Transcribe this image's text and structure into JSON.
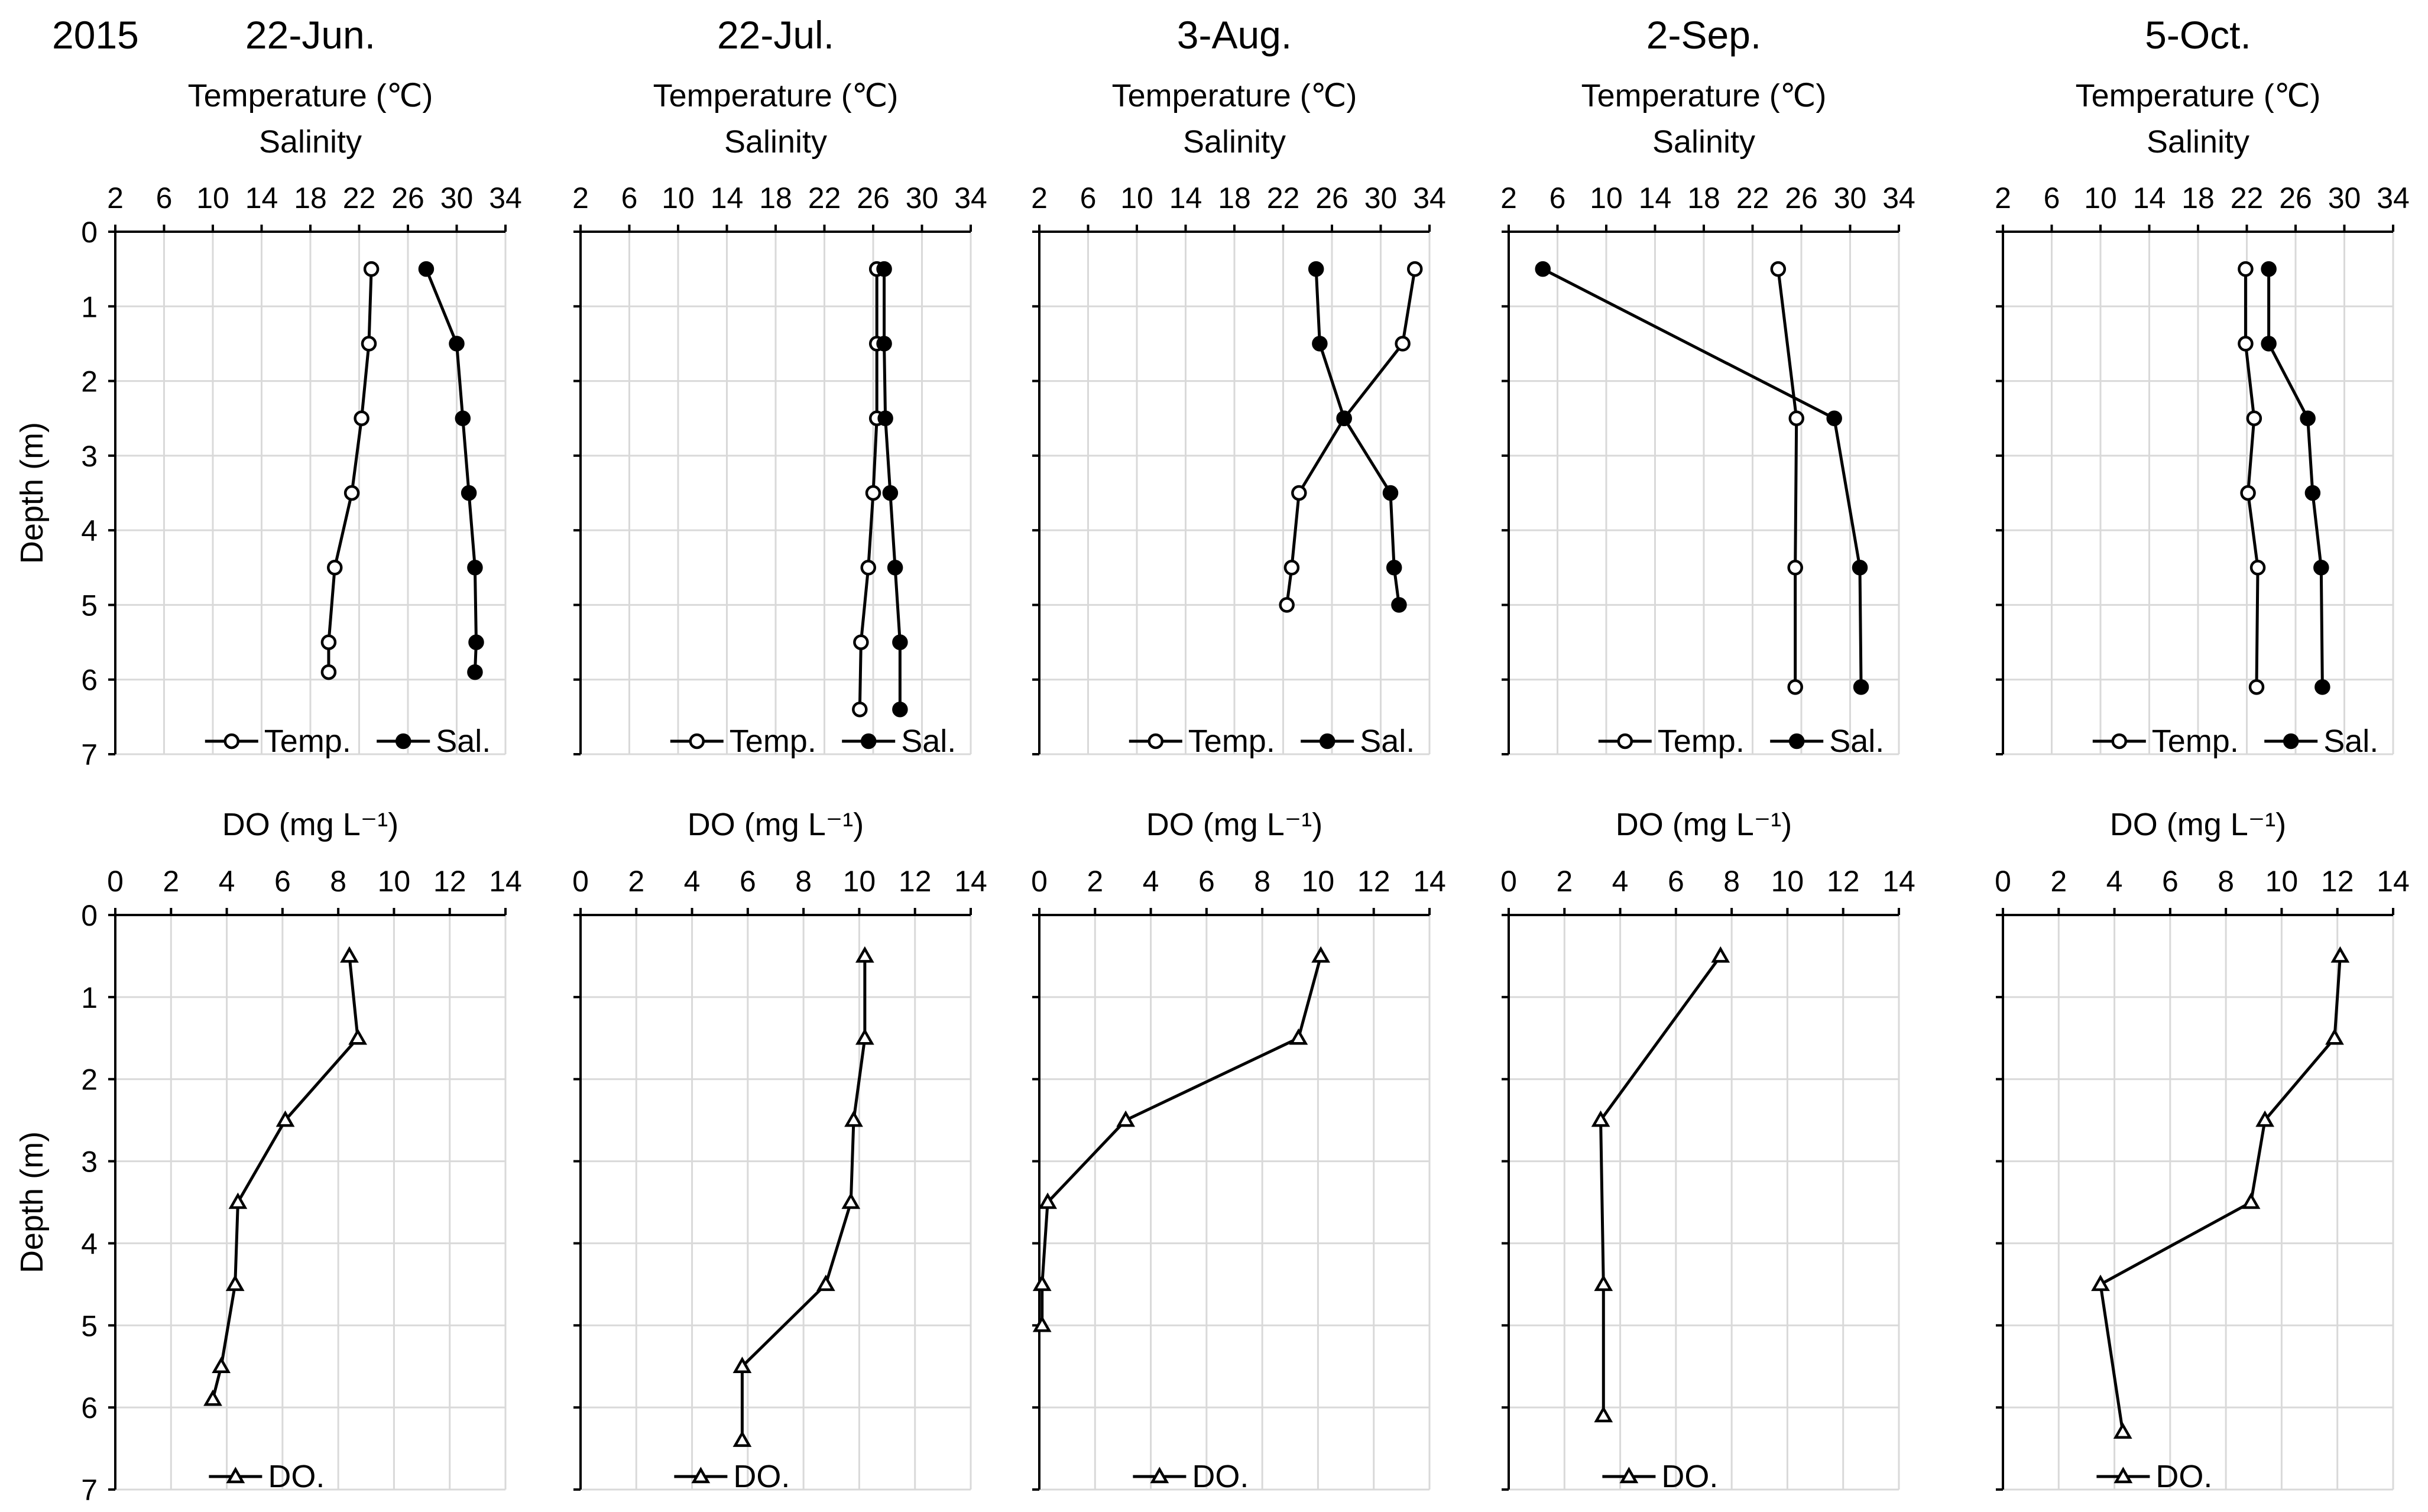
{
  "year": "2015",
  "chart_data": [
    {
      "type": "line",
      "row": "temperature-salinity",
      "title": "22-Jun.",
      "xlabel_top": "Temperature (℃)",
      "xlabel_bottom": "Salinity",
      "ylabel": "Depth (m)",
      "xlim": [
        2,
        34
      ],
      "xticks": [
        "2",
        "6",
        "10",
        "14",
        "18",
        "22",
        "26",
        "30",
        "34"
      ],
      "ylim": [
        0,
        7
      ],
      "yticks": [
        "0",
        "1",
        "2",
        "3",
        "4",
        "5",
        "6",
        "7"
      ],
      "series": [
        {
          "name": "Temp.",
          "marker": "open-circle",
          "points": [
            [
              23,
              0.5
            ],
            [
              22.8,
              1.5
            ],
            [
              22.2,
              2.5
            ],
            [
              21.4,
              3.5
            ],
            [
              20,
              4.5
            ],
            [
              19.5,
              5.5
            ],
            [
              19.5,
              5.9
            ]
          ]
        },
        {
          "name": "Sal.",
          "marker": "filled-circle",
          "points": [
            [
              27.5,
              0.5
            ],
            [
              30,
              1.5
            ],
            [
              30.5,
              2.5
            ],
            [
              31,
              3.5
            ],
            [
              31.5,
              4.5
            ],
            [
              31.6,
              5.5
            ],
            [
              31.5,
              5.9
            ]
          ]
        }
      ]
    },
    {
      "type": "line",
      "row": "temperature-salinity",
      "title": "22-Jul.",
      "xlabel_top": "Temperature (℃)",
      "xlabel_bottom": "Salinity",
      "ylabel": "",
      "xlim": [
        2,
        34
      ],
      "xticks": [
        "2",
        "6",
        "10",
        "14",
        "18",
        "22",
        "26",
        "30",
        "34"
      ],
      "ylim": [
        0,
        7
      ],
      "yticks": [
        "",
        "",
        "",
        "",
        "",
        "",
        "",
        ""
      ],
      "series": [
        {
          "name": "Temp.",
          "marker": "open-circle",
          "points": [
            [
              26.3,
              0.5
            ],
            [
              26.3,
              1.5
            ],
            [
              26.3,
              2.5
            ],
            [
              26,
              3.5
            ],
            [
              25.6,
              4.5
            ],
            [
              25,
              5.5
            ],
            [
              24.9,
              6.4
            ]
          ]
        },
        {
          "name": "Sal.",
          "marker": "filled-circle",
          "points": [
            [
              26.9,
              0.5
            ],
            [
              26.9,
              1.5
            ],
            [
              27,
              2.5
            ],
            [
              27.4,
              3.5
            ],
            [
              27.8,
              4.5
            ],
            [
              28.2,
              5.5
            ],
            [
              28.2,
              6.4
            ]
          ]
        }
      ]
    },
    {
      "type": "line",
      "row": "temperature-salinity",
      "title": "3-Aug.",
      "xlabel_top": "Temperature (℃)",
      "xlabel_bottom": "Salinity",
      "ylabel": "",
      "xlim": [
        2,
        34
      ],
      "xticks": [
        "2",
        "6",
        "10",
        "14",
        "18",
        "22",
        "26",
        "30",
        "34"
      ],
      "ylim": [
        0,
        7
      ],
      "yticks": [
        "",
        "",
        "",
        "",
        "",
        "",
        "",
        ""
      ],
      "series": [
        {
          "name": "Temp.",
          "marker": "open-circle",
          "points": [
            [
              32.8,
              0.5
            ],
            [
              31.8,
              1.5
            ],
            [
              27,
              2.5
            ],
            [
              23.3,
              3.5
            ],
            [
              22.7,
              4.5
            ],
            [
              22.3,
              5.0
            ]
          ]
        },
        {
          "name": "Sal.",
          "marker": "filled-circle",
          "points": [
            [
              24.7,
              0.5
            ],
            [
              25,
              1.5
            ],
            [
              27,
              2.5
            ],
            [
              30.8,
              3.5
            ],
            [
              31.1,
              4.5
            ],
            [
              31.5,
              5.0
            ]
          ]
        }
      ]
    },
    {
      "type": "line",
      "row": "temperature-salinity",
      "title": "2-Sep.",
      "xlabel_top": "Temperature (℃)",
      "xlabel_bottom": "Salinity",
      "ylabel": "",
      "xlim": [
        2,
        34
      ],
      "xticks": [
        "2",
        "6",
        "10",
        "14",
        "18",
        "22",
        "26",
        "30",
        "34"
      ],
      "ylim": [
        0,
        7
      ],
      "yticks": [
        "",
        "",
        "",
        "",
        "",
        "",
        "",
        ""
      ],
      "series": [
        {
          "name": "Temp.",
          "marker": "open-circle",
          "points": [
            [
              24.1,
              0.5
            ],
            [
              25.6,
              2.5
            ],
            [
              25.5,
              4.5
            ],
            [
              25.5,
              6.1
            ]
          ]
        },
        {
          "name": "Sal.",
          "marker": "filled-circle",
          "points": [
            [
              4.8,
              0.5
            ],
            [
              28.7,
              2.5
            ],
            [
              30.8,
              4.5
            ],
            [
              30.9,
              6.1
            ]
          ]
        }
      ]
    },
    {
      "type": "line",
      "row": "temperature-salinity",
      "title": "5-Oct.",
      "xlabel_top": "Temperature (℃)",
      "xlabel_bottom": "Salinity",
      "ylabel": "",
      "xlim": [
        2,
        34
      ],
      "xticks": [
        "2",
        "6",
        "10",
        "14",
        "18",
        "22",
        "26",
        "30",
        "34"
      ],
      "ylim": [
        0,
        7
      ],
      "yticks": [
        "",
        "",
        "",
        "",
        "",
        "",
        "",
        ""
      ],
      "series": [
        {
          "name": "Temp.",
          "marker": "open-circle",
          "points": [
            [
              21.9,
              0.5
            ],
            [
              21.9,
              1.5
            ],
            [
              22.6,
              2.5
            ],
            [
              22.1,
              3.5
            ],
            [
              22.9,
              4.5
            ],
            [
              22.8,
              6.1
            ]
          ]
        },
        {
          "name": "Sal.",
          "marker": "filled-circle",
          "points": [
            [
              23.8,
              0.5
            ],
            [
              23.8,
              1.5
            ],
            [
              27,
              2.5
            ],
            [
              27.4,
              3.5
            ],
            [
              28.1,
              4.5
            ],
            [
              28.2,
              6.1
            ]
          ]
        }
      ]
    },
    {
      "type": "line",
      "row": "dissolved-oxygen",
      "title": "",
      "xlabel_top": "DO (mg L⁻¹)",
      "xlabel_bottom": "",
      "ylabel": "Depth (m)",
      "xlim": [
        0,
        14
      ],
      "xticks": [
        "0",
        "2",
        "4",
        "6",
        "8",
        "10",
        "12",
        "14"
      ],
      "ylim": [
        0,
        7
      ],
      "yticks": [
        "0",
        "1",
        "2",
        "3",
        "4",
        "5",
        "6",
        "7"
      ],
      "series": [
        {
          "name": "DO.",
          "marker": "open-triangle",
          "points": [
            [
              8.4,
              0.5
            ],
            [
              8.7,
              1.5
            ],
            [
              6.1,
              2.5
            ],
            [
              4.4,
              3.5
            ],
            [
              4.3,
              4.5
            ],
            [
              3.8,
              5.5
            ],
            [
              3.5,
              5.9
            ]
          ]
        }
      ]
    },
    {
      "type": "line",
      "row": "dissolved-oxygen",
      "title": "",
      "xlabel_top": "DO (mg L⁻¹)",
      "xlabel_bottom": "",
      "ylabel": "",
      "xlim": [
        0,
        14
      ],
      "xticks": [
        "0",
        "2",
        "4",
        "6",
        "8",
        "10",
        "12",
        "14"
      ],
      "ylim": [
        0,
        7
      ],
      "yticks": [
        "",
        "",
        "",
        "",
        "",
        "",
        "",
        ""
      ],
      "series": [
        {
          "name": "DO.",
          "marker": "open-triangle",
          "points": [
            [
              10.2,
              0.5
            ],
            [
              10.2,
              1.5
            ],
            [
              9.8,
              2.5
            ],
            [
              9.7,
              3.5
            ],
            [
              8.8,
              4.5
            ],
            [
              5.8,
              5.5
            ],
            [
              5.8,
              6.4
            ]
          ]
        }
      ]
    },
    {
      "type": "line",
      "row": "dissolved-oxygen",
      "title": "",
      "xlabel_top": "DO (mg L⁻¹)",
      "xlabel_bottom": "",
      "ylabel": "",
      "xlim": [
        0,
        14
      ],
      "xticks": [
        "0",
        "2",
        "4",
        "6",
        "8",
        "10",
        "12",
        "14"
      ],
      "ylim": [
        0,
        7
      ],
      "yticks": [
        "",
        "",
        "",
        "",
        "",
        "",
        "",
        ""
      ],
      "series": [
        {
          "name": "DO.",
          "marker": "open-triangle",
          "points": [
            [
              10.1,
              0.5
            ],
            [
              9.3,
              1.5
            ],
            [
              3.1,
              2.5
            ],
            [
              0.3,
              3.5
            ],
            [
              0.1,
              4.5
            ],
            [
              0.1,
              5.0
            ]
          ]
        }
      ]
    },
    {
      "type": "line",
      "row": "dissolved-oxygen",
      "title": "",
      "xlabel_top": "DO (mg L⁻¹)",
      "xlabel_bottom": "",
      "ylabel": "",
      "xlim": [
        0,
        14
      ],
      "xticks": [
        "0",
        "2",
        "4",
        "6",
        "8",
        "10",
        "12",
        "14"
      ],
      "ylim": [
        0,
        7
      ],
      "yticks": [
        "",
        "",
        "",
        "",
        "",
        "",
        "",
        ""
      ],
      "series": [
        {
          "name": "DO.",
          "marker": "open-triangle",
          "points": [
            [
              7.6,
              0.5
            ],
            [
              3.3,
              2.5
            ],
            [
              3.4,
              4.5
            ],
            [
              3.4,
              6.1
            ]
          ]
        }
      ]
    },
    {
      "type": "line",
      "row": "dissolved-oxygen",
      "title": "",
      "xlabel_top": "DO (mg L⁻¹)",
      "xlabel_bottom": "",
      "ylabel": "",
      "xlim": [
        0,
        14
      ],
      "xticks": [
        "0",
        "2",
        "4",
        "6",
        "8",
        "10",
        "12",
        "14"
      ],
      "ylim": [
        0,
        7
      ],
      "yticks": [
        "",
        "",
        "",
        "",
        "",
        "",
        "",
        ""
      ],
      "series": [
        {
          "name": "DO.",
          "marker": "open-triangle",
          "points": [
            [
              12.1,
              0.5
            ],
            [
              11.9,
              1.5
            ],
            [
              9.4,
              2.5
            ],
            [
              8.9,
              3.5
            ],
            [
              3.5,
              4.5
            ],
            [
              4.3,
              6.3
            ]
          ]
        }
      ]
    }
  ]
}
